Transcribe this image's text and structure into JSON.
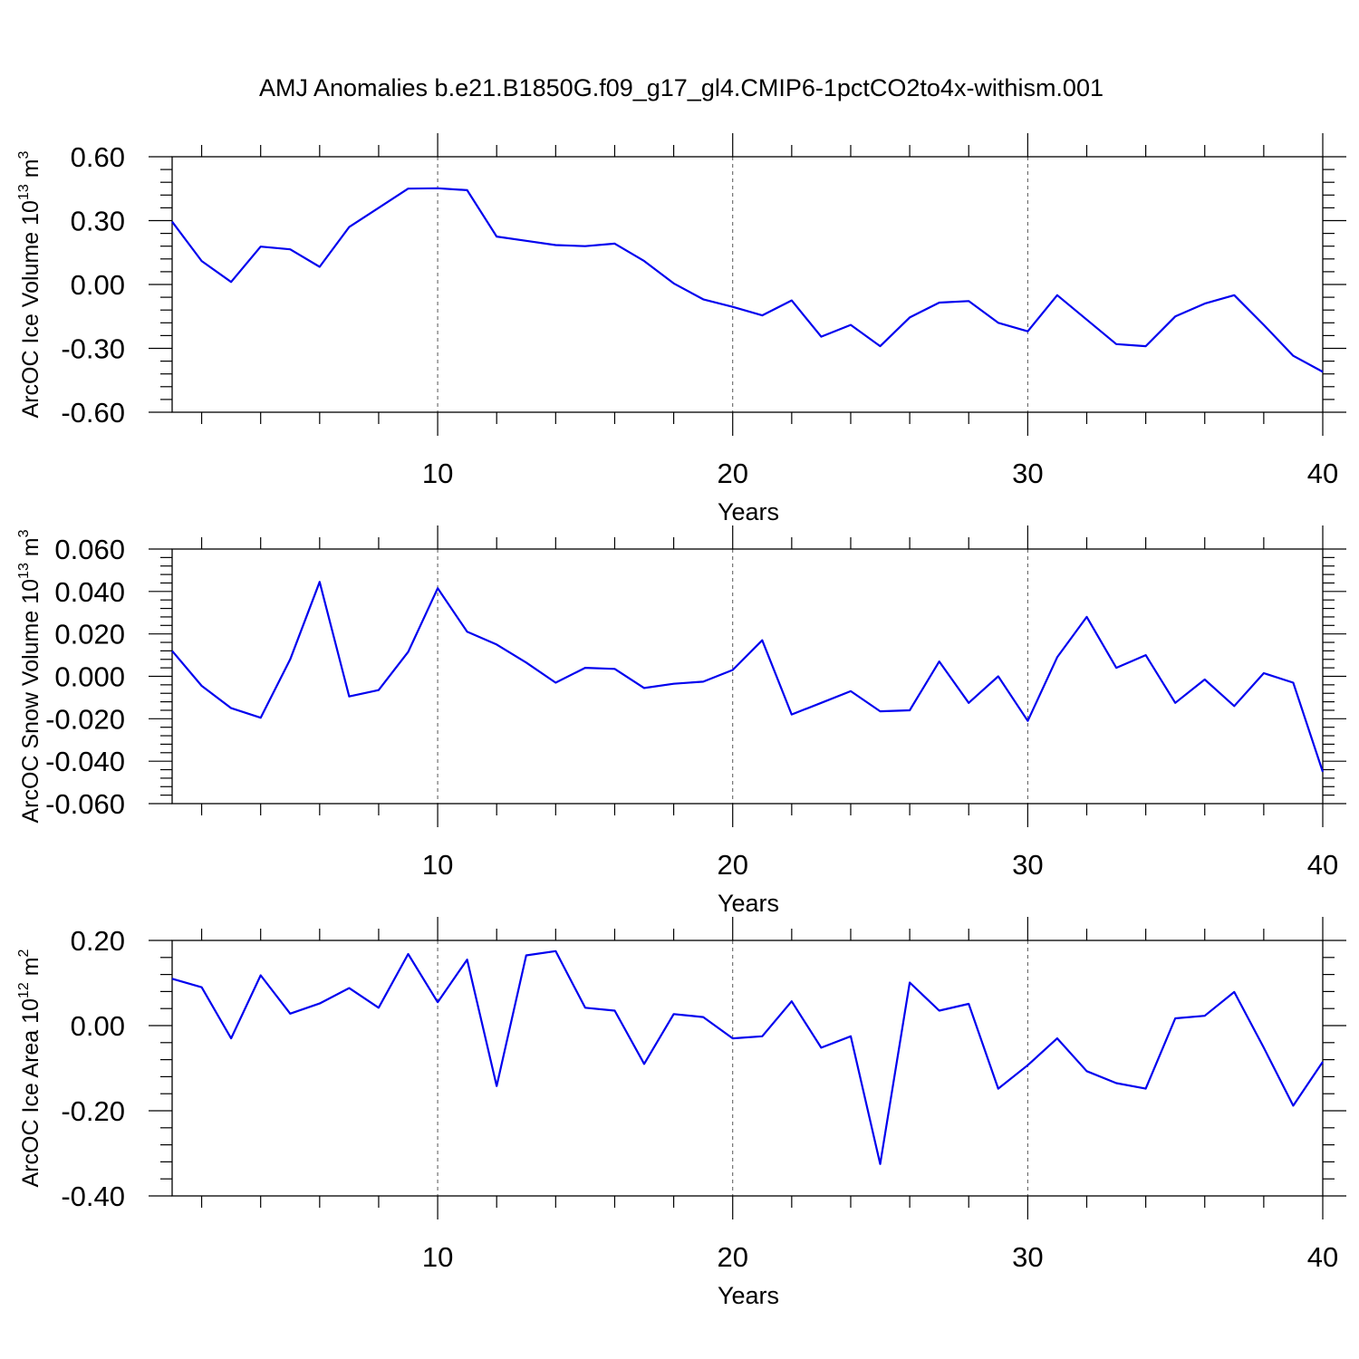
{
  "chart_data": {
    "type": "line",
    "title": "AMJ Anomalies b.e21.B1850G.f09_g17_gl4.CMIP6-1pctCO2to4x-withism.001",
    "line_color": "#0000ee",
    "x": [
      1,
      2,
      3,
      4,
      5,
      6,
      7,
      8,
      9,
      10,
      11,
      12,
      13,
      14,
      15,
      16,
      17,
      18,
      19,
      20,
      21,
      22,
      23,
      24,
      25,
      26,
      27,
      28,
      29,
      30,
      31,
      32,
      33,
      34,
      35,
      36,
      37,
      38,
      39,
      40
    ],
    "xlim": [
      1,
      40
    ],
    "xticks": [
      10,
      20,
      30,
      40
    ],
    "xtick_labels": [
      "10",
      "20",
      "30",
      "40"
    ],
    "xlabel": "Years",
    "grid_x": [
      10,
      20,
      30
    ],
    "panels": [
      {
        "ylabel_main": "ArcOC Ice Volume 10",
        "ylabel_exp": "13",
        "ylabel_unit": "m",
        "ylabel_unit_exp": "3",
        "ylim": [
          -0.6,
          0.6
        ],
        "yticks": [
          0.6,
          0.3,
          0.0,
          -0.3,
          -0.6
        ],
        "ytick_labels": [
          "0.60",
          "0.30",
          "0.00",
          "-0.30",
          "-0.60"
        ],
        "values": [
          0.295,
          0.11,
          0.012,
          0.178,
          0.165,
          0.083,
          0.27,
          0.36,
          0.45,
          0.452,
          0.443,
          0.225,
          0.205,
          0.185,
          0.18,
          0.192,
          0.11,
          0.005,
          -0.07,
          -0.105,
          -0.145,
          -0.075,
          -0.245,
          -0.19,
          -0.29,
          -0.155,
          -0.085,
          -0.078,
          -0.18,
          -0.22,
          -0.05,
          -0.165,
          -0.28,
          -0.29,
          -0.15,
          -0.09,
          -0.05,
          -0.19,
          -0.335,
          -0.41
        ]
      },
      {
        "ylabel_main": "ArcOC Snow Volume 10",
        "ylabel_exp": "13",
        "ylabel_unit": "m",
        "ylabel_unit_exp": "3",
        "ylim": [
          -0.06,
          0.06
        ],
        "yticks": [
          0.06,
          0.04,
          0.02,
          0.0,
          -0.02,
          -0.04,
          -0.06
        ],
        "ytick_labels": [
          "0.060",
          "0.040",
          "0.020",
          "0.000",
          "-0.020",
          "-0.040",
          "-0.060"
        ],
        "values": [
          0.012,
          -0.0045,
          -0.015,
          -0.0195,
          0.008,
          0.0445,
          -0.0095,
          -0.0065,
          0.0115,
          0.0415,
          0.021,
          0.015,
          0.0065,
          -0.003,
          0.004,
          0.0035,
          -0.0055,
          -0.0035,
          -0.0025,
          0.003,
          0.017,
          -0.018,
          -0.0125,
          -0.007,
          -0.0165,
          -0.016,
          0.007,
          -0.0125,
          0.0,
          -0.021,
          0.009,
          0.028,
          0.004,
          0.01,
          -0.0125,
          -0.0015,
          -0.014,
          0.0015,
          -0.003,
          -0.045
        ]
      },
      {
        "ylabel_main": "ArcOC Ice Area 10",
        "ylabel_exp": "12",
        "ylabel_unit": "m",
        "ylabel_unit_exp": "2",
        "ylim": [
          -0.4,
          0.2
        ],
        "yticks": [
          0.2,
          0.0,
          -0.2,
          -0.4
        ],
        "ytick_labels": [
          "0.20",
          "0.00",
          "-0.20",
          "-0.40"
        ],
        "values": [
          0.11,
          0.09,
          -0.03,
          0.118,
          0.028,
          0.052,
          0.088,
          0.042,
          0.168,
          0.055,
          0.155,
          -0.142,
          0.165,
          0.175,
          0.042,
          0.035,
          -0.09,
          0.027,
          0.02,
          -0.03,
          -0.025,
          0.057,
          -0.052,
          -0.025,
          -0.325,
          0.101,
          0.035,
          0.051,
          -0.148,
          -0.093,
          -0.03,
          -0.107,
          -0.135,
          -0.148,
          0.017,
          0.023,
          0.079,
          -0.052,
          -0.188,
          -0.085
        ]
      }
    ]
  }
}
